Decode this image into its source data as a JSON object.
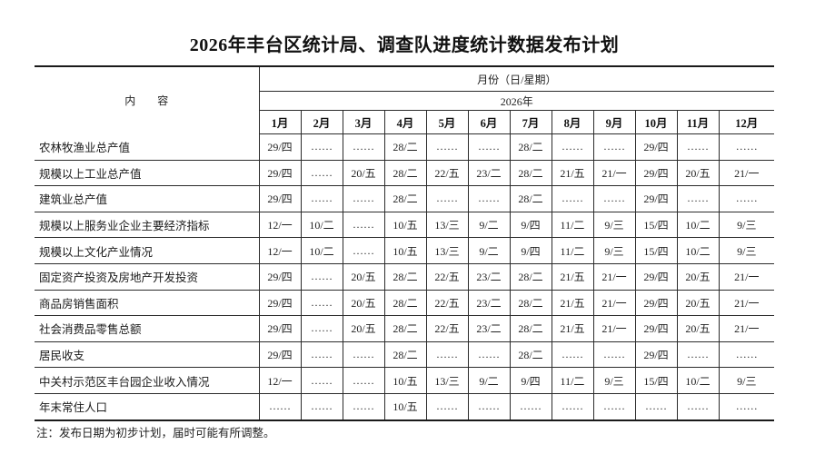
{
  "title": "2026年丰台区统计局、调查队进度统计数据发布计划",
  "table": {
    "content_header": "内　　容",
    "month_group_header": "月份（日/星期）",
    "year_header": "2026年",
    "months": [
      "1月",
      "2月",
      "3月",
      "4月",
      "5月",
      "6月",
      "7月",
      "8月",
      "9月",
      "10月",
      "11月",
      "12月"
    ],
    "rows": [
      {
        "label": "农林牧渔业总产值",
        "values": [
          "29/四",
          "……",
          "……",
          "28/二",
          "……",
          "……",
          "28/二",
          "……",
          "……",
          "29/四",
          "……",
          "……"
        ]
      },
      {
        "label": "规模以上工业总产值",
        "values": [
          "29/四",
          "……",
          "20/五",
          "28/二",
          "22/五",
          "23/二",
          "28/二",
          "21/五",
          "21/一",
          "29/四",
          "20/五",
          "21/一"
        ]
      },
      {
        "label": "建筑业总产值",
        "values": [
          "29/四",
          "……",
          "……",
          "28/二",
          "……",
          "……",
          "28/二",
          "……",
          "……",
          "29/四",
          "……",
          "……"
        ]
      },
      {
        "label": "规模以上服务业企业主要经济指标",
        "values": [
          "12/一",
          "10/二",
          "……",
          "10/五",
          "13/三",
          "9/二",
          "9/四",
          "11/二",
          "9/三",
          "15/四",
          "10/二",
          "9/三"
        ]
      },
      {
        "label": "规模以上文化产业情况",
        "values": [
          "12/一",
          "10/二",
          "……",
          "10/五",
          "13/三",
          "9/二",
          "9/四",
          "11/二",
          "9/三",
          "15/四",
          "10/二",
          "9/三"
        ]
      },
      {
        "label": "固定资产投资及房地产开发投资",
        "values": [
          "29/四",
          "……",
          "20/五",
          "28/二",
          "22/五",
          "23/二",
          "28/二",
          "21/五",
          "21/一",
          "29/四",
          "20/五",
          "21/一"
        ]
      },
      {
        "label": "商品房销售面积",
        "values": [
          "29/四",
          "……",
          "20/五",
          "28/二",
          "22/五",
          "23/二",
          "28/二",
          "21/五",
          "21/一",
          "29/四",
          "20/五",
          "21/一"
        ]
      },
      {
        "label": "社会消费品零售总额",
        "values": [
          "29/四",
          "……",
          "20/五",
          "28/二",
          "22/五",
          "23/二",
          "28/二",
          "21/五",
          "21/一",
          "29/四",
          "20/五",
          "21/一"
        ]
      },
      {
        "label": "居民收支",
        "values": [
          "29/四",
          "……",
          "……",
          "28/二",
          "……",
          "……",
          "28/二",
          "……",
          "……",
          "29/四",
          "……",
          "……"
        ]
      },
      {
        "label": "中关村示范区丰台园企业收入情况",
        "values": [
          "12/一",
          "……",
          "……",
          "10/五",
          "13/三",
          "9/二",
          "9/四",
          "11/二",
          "9/三",
          "15/四",
          "10/二",
          "9/三"
        ]
      },
      {
        "label": "年末常住人口",
        "values": [
          "……",
          "……",
          "……",
          "10/五",
          "……",
          "……",
          "……",
          "……",
          "……",
          "……",
          "……",
          "……"
        ]
      }
    ]
  },
  "footnote": "注：发布日期为初步计划，届时可能有所调整。"
}
